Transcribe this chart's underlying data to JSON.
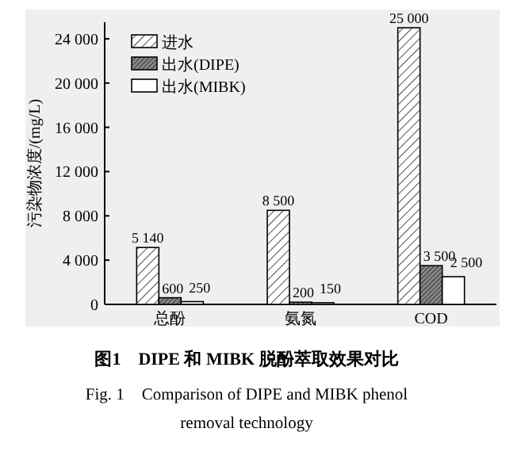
{
  "chart_data": {
    "type": "bar",
    "title": "图1　DIPE 和 MIBK 脱酚萃取效果对比",
    "subtitle": "Fig. 1　Comparison of DIPE and MIBK phenol removal technology",
    "ylabel": "污染物浓度/(mg/L)",
    "categories": [
      "总酚",
      "氨氮",
      "COD"
    ],
    "series": [
      {
        "name": "进水",
        "color": "#ffffff",
        "values": [
          5140,
          8500,
          25000
        ],
        "value_labels": [
          "5 140",
          "8 500",
          "25 000"
        ]
      },
      {
        "name": "出水(DIPE)",
        "color": "#888888",
        "values": [
          600,
          200,
          3500
        ],
        "value_labels": [
          "600",
          "200",
          "3 500"
        ]
      },
      {
        "name": "出水(MIBK)",
        "color": "#ffffff",
        "values": [
          250,
          150,
          2500
        ],
        "value_labels": [
          "250",
          "150",
          "2 500"
        ]
      }
    ],
    "ylim": [
      0,
      25500
    ],
    "yticks": [
      0,
      {
        "value": 4000,
        "label": "4 000"
      },
      {
        "value": 8000,
        "label": "8 000"
      },
      {
        "value": 12000,
        "label": "12 000"
      },
      {
        "value": 16000,
        "label": "16 000"
      },
      {
        "value": 20000,
        "label": "20 000"
      },
      {
        "value": 24000,
        "label": "24 000"
      }
    ],
    "legend": "top left",
    "grid": false
  }
}
